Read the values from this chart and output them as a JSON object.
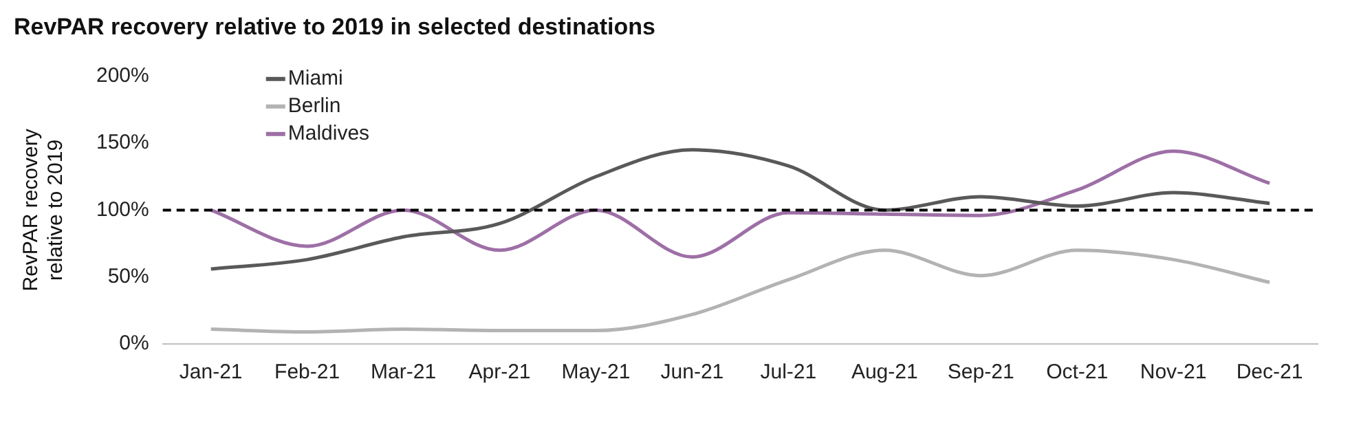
{
  "chart_data": {
    "type": "line",
    "title": "RevPAR recovery relative to 2019 in selected destinations",
    "ylabel": "RevPAR recovery relative to 2019",
    "categories": [
      "Jan-21",
      "Feb-21",
      "Mar-21",
      "Apr-21",
      "May-21",
      "Jun-21",
      "Jul-21",
      "Aug-21",
      "Sep-21",
      "Oct-21",
      "Nov-21",
      "Dec-21"
    ],
    "series": [
      {
        "name": "Miami",
        "color": "#595959",
        "values": [
          56,
          63,
          80,
          90,
          125,
          145,
          133,
          100,
          110,
          103,
          113,
          105
        ]
      },
      {
        "name": "Berlin",
        "color": "#b3b3b3",
        "values": [
          11,
          9,
          11,
          10,
          10,
          22,
          48,
          70,
          51,
          70,
          63,
          46
        ]
      },
      {
        "name": "Maldives",
        "color": "#9e6fa6",
        "values": [
          100,
          73,
          100,
          70,
          100,
          65,
          98,
          97,
          96,
          115,
          144,
          120
        ]
      }
    ],
    "ylim": [
      0,
      200
    ],
    "yticks": [
      {
        "value": 0,
        "label": "0%"
      },
      {
        "value": 50,
        "label": "50%"
      },
      {
        "value": 100,
        "label": "100%"
      },
      {
        "value": 150,
        "label": "150%"
      },
      {
        "value": 200,
        "label": "200%"
      }
    ],
    "ref_lines": [
      {
        "axis": "y",
        "value": 100,
        "color": "#000000",
        "line_style": "dashed"
      }
    ],
    "grid": false,
    "legend": "top left",
    "marker": "none",
    "line_style": "solid"
  }
}
